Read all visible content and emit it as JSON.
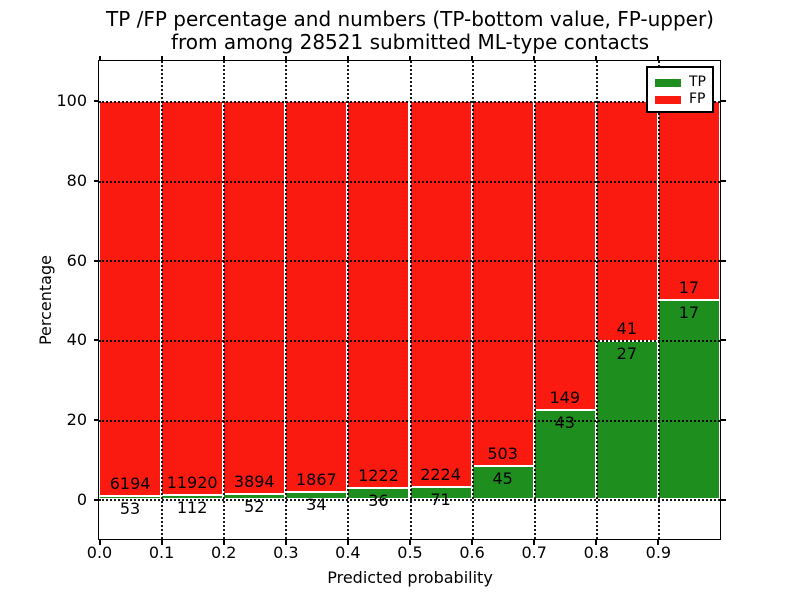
{
  "chart_data": {
    "type": "bar",
    "stacked": true,
    "normalized_to_percent": 100,
    "title_line1": "TP /FP percentage and numbers (TP-bottom value, FP-upper)",
    "title_line2": "from among 28521 submitted ML-type contacts",
    "total_submitted": 28521,
    "xlabel": "Predicted probability",
    "ylabel": "Percentage",
    "xlim": [
      0.0,
      1.0
    ],
    "ylim": [
      -10,
      110
    ],
    "bin_width": 0.1,
    "x_tick_labels": [
      "0.0",
      "0.1",
      "0.2",
      "0.3",
      "0.4",
      "0.5",
      "0.6",
      "0.7",
      "0.8",
      "0.9"
    ],
    "y_tick_values": [
      0,
      20,
      40,
      60,
      80,
      100
    ],
    "grid": "dotted",
    "legend": {
      "position": "upper right",
      "entries": [
        {
          "label": "TP",
          "color": "#1e8e1e"
        },
        {
          "label": "FP",
          "color": "#fb1a10"
        }
      ]
    },
    "series": [
      {
        "name": "TP",
        "color": "#1e8e1e",
        "counts": [
          53,
          112,
          52,
          34,
          36,
          71,
          45,
          43,
          27,
          17
        ]
      },
      {
        "name": "FP",
        "color": "#fb1a10",
        "counts": [
          6194,
          11920,
          3894,
          1867,
          1222,
          2224,
          503,
          149,
          41,
          17
        ]
      }
    ],
    "bar_label_note": "TP count printed below segment boundary, FP count printed above segment boundary"
  }
}
